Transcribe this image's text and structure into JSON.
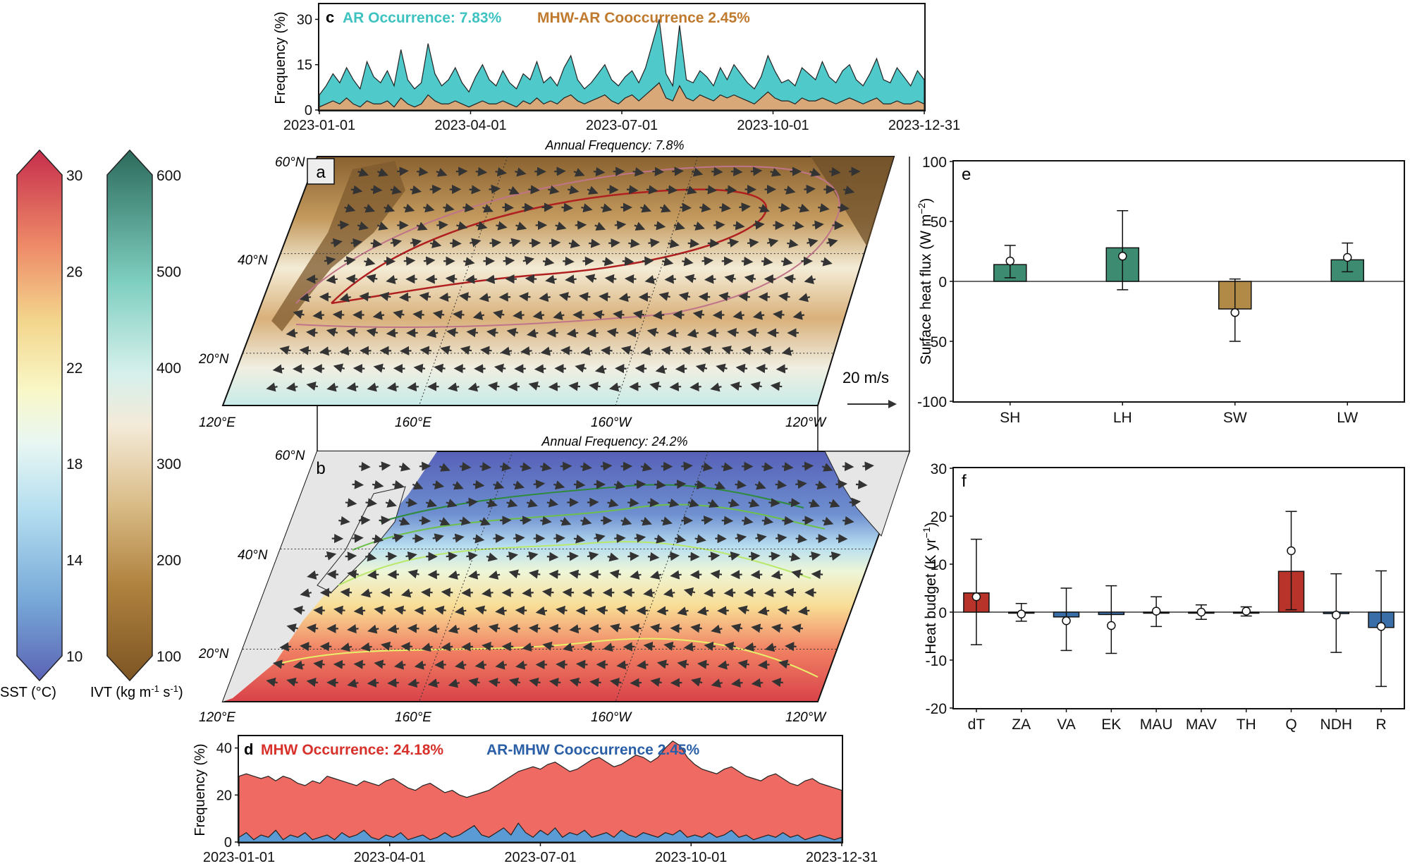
{
  "colorbars": {
    "sst": {
      "label": "SST (°C)",
      "ticks": [
        "10",
        "14",
        "18",
        "22",
        "26",
        "30"
      ],
      "range": [
        10,
        30
      ]
    },
    "ivt": {
      "label": "IVT (kg m",
      "label_sup1": "-1",
      "label_mid": " s",
      "label_sup2": "-1",
      "label_end": ")",
      "ticks": [
        "100",
        "200",
        "300",
        "400",
        "500",
        "600"
      ],
      "range": [
        100,
        600
      ]
    }
  },
  "panel_a": {
    "letter": "a",
    "title": "Annual Frequency: 7.8%",
    "lat_labels": [
      "60°N",
      "40°N",
      "20°N"
    ],
    "lon_labels": [
      "120°E",
      "160°E",
      "160°W",
      "120°W"
    ],
    "scale_label": "20 m/s"
  },
  "panel_b": {
    "letter": "b",
    "title": "Annual Frequency: 24.2%",
    "lat_labels": [
      "60°N",
      "40°N",
      "20°N"
    ],
    "lon_labels": [
      "120°E",
      "160°E",
      "160°W",
      "120°W"
    ]
  },
  "chart_data": [
    {
      "panel": "c",
      "type": "area",
      "legend": [
        {
          "text": "AR Occurrence: 7.83%",
          "color": "#3ec3c0"
        },
        {
          "text": "MHW-AR Cooccurrence 2.45%",
          "color": "#c07a2e"
        }
      ],
      "ylabel": "Frequency (%)",
      "yticks": [
        "0",
        "15",
        "30"
      ],
      "ylim": [
        0,
        35
      ],
      "xticks": [
        "2023-01-01",
        "2023-04-01",
        "2023-07-01",
        "2023-10-01",
        "2023-12-31"
      ],
      "series": [
        {
          "name": "AR Occurrence: 7.83%",
          "color": "#4fc9c9",
          "values": [
            5,
            8,
            12,
            9,
            14,
            10,
            7,
            16,
            11,
            9,
            13,
            8,
            20,
            10,
            7,
            9,
            22,
            12,
            8,
            10,
            14,
            9,
            6,
            11,
            15,
            10,
            8,
            13,
            9,
            7,
            12,
            10,
            16,
            9,
            11,
            8,
            14,
            18,
            10,
            7,
            9,
            12,
            15,
            10,
            8,
            11,
            13,
            9,
            14,
            22,
            30,
            12,
            8,
            28,
            10,
            9,
            13,
            11,
            8,
            14,
            10,
            15,
            12,
            9,
            7,
            11,
            18,
            13,
            9,
            10,
            8,
            14,
            12,
            10,
            16,
            11,
            9,
            13,
            15,
            10,
            8,
            12,
            17,
            10,
            9,
            14,
            11,
            8,
            13,
            10
          ]
        },
        {
          "name": "MHW-AR Cooccurrence 2.45%",
          "color": "#d9a878",
          "values": [
            1,
            2,
            3,
            2,
            4,
            2,
            1,
            3,
            2,
            2,
            3,
            1,
            4,
            2,
            1,
            2,
            5,
            3,
            2,
            2,
            3,
            2,
            1,
            2,
            3,
            2,
            2,
            3,
            2,
            1,
            3,
            2,
            4,
            2,
            3,
            2,
            4,
            5,
            3,
            2,
            3,
            4,
            5,
            3,
            2,
            4,
            5,
            3,
            5,
            7,
            9,
            4,
            3,
            8,
            4,
            3,
            5,
            4,
            3,
            5,
            4,
            5,
            4,
            3,
            2,
            4,
            6,
            4,
            3,
            3,
            2,
            4,
            3,
            3,
            4,
            3,
            2,
            3,
            4,
            3,
            2,
            3,
            4,
            2,
            2,
            3,
            2,
            2,
            3,
            2
          ]
        }
      ]
    },
    {
      "panel": "d",
      "type": "area",
      "legend": [
        {
          "text": "MHW Occurrence: 24.18%",
          "color": "#d8302a"
        },
        {
          "text": "AR-MHW Cooccurrence 2.45%",
          "color": "#2a5fa8"
        }
      ],
      "ylabel": "Frequency (%)",
      "yticks": [
        "0",
        "20",
        "40"
      ],
      "ylim": [
        0,
        45
      ],
      "xticks": [
        "2023-01-01",
        "2023-04-01",
        "2023-07-01",
        "2023-10-01",
        "2023-12-31"
      ],
      "series": [
        {
          "name": "MHW Occurrence: 24.18%",
          "color": "#ef6a62",
          "values": [
            28,
            29,
            28,
            27,
            28,
            26,
            28,
            27,
            25,
            24,
            26,
            25,
            28,
            27,
            26,
            25,
            24,
            26,
            25,
            24,
            26,
            27,
            25,
            23,
            22,
            24,
            25,
            23,
            21,
            22,
            20,
            19,
            20,
            21,
            22,
            24,
            26,
            28,
            30,
            31,
            32,
            31,
            33,
            34,
            32,
            30,
            31,
            33,
            35,
            36,
            34,
            32,
            33,
            35,
            37,
            36,
            34,
            36,
            40,
            43,
            41,
            36,
            33,
            31,
            30,
            29,
            31,
            32,
            30,
            28,
            27,
            26,
            28,
            29,
            27,
            25,
            24,
            26,
            27,
            25,
            24,
            23,
            22
          ]
        },
        {
          "name": "AR-MHW Cooccurrence 2.45%",
          "color": "#5b9bd5",
          "values": [
            2,
            4,
            1,
            3,
            2,
            5,
            1,
            3,
            2,
            4,
            1,
            2,
            3,
            1,
            4,
            2,
            3,
            5,
            2,
            1,
            3,
            2,
            4,
            1,
            2,
            3,
            1,
            2,
            4,
            2,
            3,
            5,
            7,
            3,
            2,
            4,
            6,
            3,
            8,
            4,
            2,
            5,
            3,
            6,
            2,
            4,
            3,
            5,
            2,
            3,
            4,
            2,
            5,
            3,
            2,
            4,
            3,
            2,
            4,
            3,
            5,
            2,
            3,
            2,
            4,
            2,
            3,
            5,
            2,
            3,
            1,
            2,
            3,
            2,
            4,
            2,
            3,
            1,
            2,
            3,
            2,
            1,
            2
          ]
        }
      ]
    },
    {
      "panel": "e",
      "type": "bar",
      "ylabel": "Surface heat flux (W m",
      "ylabel_sup": "−2",
      "ylabel_end": ")",
      "ylim": [
        -100,
        100
      ],
      "yticks": [
        -100,
        -50,
        0,
        50,
        100
      ],
      "categories": [
        "SH",
        "LH",
        "SW",
        "LW"
      ],
      "values": [
        14,
        28,
        -23,
        18
      ],
      "dots": [
        17,
        21,
        -26,
        20
      ],
      "err_low": [
        3,
        -7,
        -50,
        8
      ],
      "err_high": [
        30,
        59,
        2,
        32
      ],
      "colors": [
        "#3d8c72",
        "#3d8c72",
        "#b08a46",
        "#3d8c72"
      ]
    },
    {
      "panel": "f",
      "type": "bar",
      "ylabel": "Heat budget (K yr",
      "ylabel_sup": "−1",
      "ylabel_end": ")",
      "ylim": [
        -20,
        30
      ],
      "yticks": [
        -20,
        -10,
        0,
        10,
        20,
        30
      ],
      "categories": [
        "dT",
        "ZA",
        "VA",
        "EK",
        "MAU",
        "MAV",
        "TH",
        "Q",
        "NDH",
        "R"
      ],
      "values": [
        4,
        0,
        -1,
        -0.5,
        0,
        0,
        0,
        8.5,
        -0.3,
        -3.2
      ],
      "dots": [
        3.2,
        -0.4,
        -1.8,
        -2.8,
        0.2,
        0,
        0.2,
        12.8,
        -0.6,
        -3.0
      ],
      "err_low": [
        -6.8,
        -1.9,
        -8,
        -8.6,
        -3,
        -1.5,
        -0.8,
        0.5,
        -8.4,
        -15.5
      ],
      "err_high": [
        15.2,
        1.8,
        5,
        5.5,
        3.2,
        1.5,
        1.1,
        21,
        8,
        8.6
      ],
      "colors": [
        "#b8342a",
        "#b8342a",
        "#3a6ea8",
        "#3a6ea8",
        "#3a6ea8",
        "#3a6ea8",
        "#3a6ea8",
        "#b8342a",
        "#3a6ea8",
        "#3a6ea8"
      ]
    }
  ]
}
